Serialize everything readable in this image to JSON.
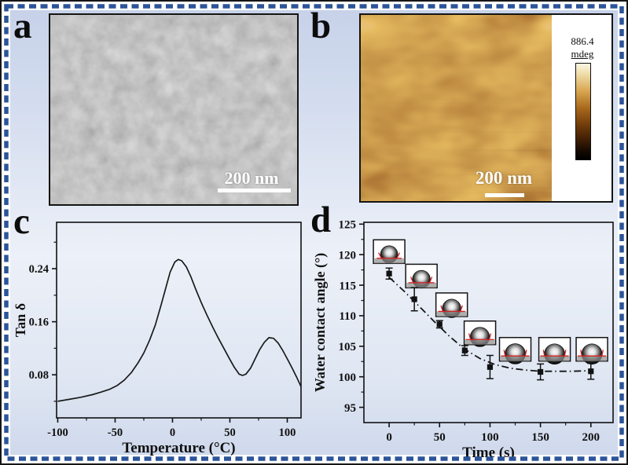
{
  "figure": {
    "colors": {
      "frame_black": "#161616",
      "dash_border_blue": "#2b5499",
      "background_blue_top": "#c7d2e9",
      "background_pale_mid": "#ecf0f8",
      "scale_bar_white": "#ffffff",
      "contact_line_red": "#d42222",
      "curve_black": "#1a1a1a",
      "afm_copper_high": "#f5e7c0",
      "afm_copper_mid": "#9e5f14",
      "afm_copper_low": "#1a0d02"
    }
  },
  "panels": {
    "a": {
      "label": "a",
      "description": "SEM micrograph",
      "scale_bar_label": "200 nm"
    },
    "b": {
      "label": "b",
      "description": "AFM image",
      "scale_bar_label": "200 nm",
      "colorbar": {
        "max_label": "886.4",
        "unit_label": "mdeg"
      }
    },
    "c": {
      "label": "c"
    },
    "d": {
      "label": "d"
    }
  },
  "chart_data": [
    {
      "panel": "c",
      "type": "line",
      "title": "",
      "xlabel": "Temperature (°C)",
      "ylabel": "Tan δ",
      "xlim": [
        -101,
        112
      ],
      "ylim": [
        0.015,
        0.31
      ],
      "xticks": [
        -100,
        -50,
        0,
        50,
        100
      ],
      "xtick_labels": [
        "-100",
        "-50",
        "0",
        "50",
        "100"
      ],
      "minor_xticks": [
        -75,
        -25,
        25,
        75
      ],
      "yticks": [
        0.08,
        0.16,
        0.24
      ],
      "ytick_labels": [
        "0.08",
        "0.16",
        "0.24"
      ],
      "minor_yticks": [
        0.04,
        0.12,
        0.2,
        0.28
      ],
      "grid": false,
      "legend": "none",
      "series": [
        {
          "name": "tan_delta",
          "x": [
            -100,
            -90,
            -80,
            -70,
            -62,
            -55,
            -48,
            -42,
            -36,
            -30,
            -25,
            -20,
            -15,
            -10,
            -6,
            -2,
            2,
            5,
            8,
            12,
            16,
            20,
            25,
            30,
            35,
            40,
            45,
            50,
            54,
            58,
            61,
            64,
            68,
            72,
            76,
            80,
            84,
            88,
            92,
            96,
            100,
            104,
            108,
            112
          ],
          "y": [
            0.04,
            0.043,
            0.046,
            0.05,
            0.054,
            0.058,
            0.064,
            0.072,
            0.083,
            0.098,
            0.113,
            0.132,
            0.155,
            0.185,
            0.21,
            0.235,
            0.25,
            0.254,
            0.252,
            0.243,
            0.228,
            0.21,
            0.189,
            0.17,
            0.152,
            0.135,
            0.119,
            0.103,
            0.091,
            0.081,
            0.079,
            0.081,
            0.09,
            0.104,
            0.118,
            0.129,
            0.136,
            0.135,
            0.128,
            0.117,
            0.104,
            0.091,
            0.077,
            0.062
          ]
        }
      ]
    },
    {
      "panel": "d",
      "type": "scatter",
      "title": "",
      "xlabel": "Time (s)",
      "ylabel": "Water contact angle (°)",
      "xlim": [
        -25,
        222
      ],
      "ylim": [
        92.5,
        125.3
      ],
      "xticks": [
        0,
        50,
        100,
        150,
        200
      ],
      "xtick_labels": [
        "0",
        "50",
        "100",
        "150",
        "200"
      ],
      "minor_xticks": [
        25,
        75,
        125,
        175
      ],
      "yticks": [
        95,
        100,
        105,
        110,
        115,
        120,
        125
      ],
      "ytick_labels": [
        "95",
        "100",
        "105",
        "110",
        "115",
        "120",
        "125"
      ],
      "minor_yticks": [
        97.5,
        102.5,
        107.5,
        112.5,
        117.5,
        122.5
      ],
      "grid": false,
      "legend": "none",
      "points": {
        "x": [
          0,
          25,
          50,
          75,
          100,
          150,
          200
        ],
        "y": [
          116.9,
          112.7,
          108.6,
          104.3,
          101.6,
          100.8,
          100.9
        ],
        "yerr": [
          0.9,
          1.9,
          0.6,
          0.8,
          1.9,
          1.3,
          1.3
        ]
      },
      "trend": {
        "style": "dash-dot",
        "x": [
          0,
          15,
          30,
          45,
          60,
          75,
          90,
          105,
          120,
          135,
          150,
          165,
          180,
          200
        ],
        "y": [
          116.3,
          114.0,
          111.5,
          109.0,
          106.6,
          104.5,
          103.0,
          102.0,
          101.4,
          101.1,
          100.9,
          100.9,
          100.9,
          101.0
        ]
      },
      "insets": [
        {
          "x": 0,
          "y": 120.5,
          "angle": 117,
          "scale": 1.0
        },
        {
          "x": 32,
          "y": 116.5,
          "angle": 113,
          "scale": 1.03
        },
        {
          "x": 62,
          "y": 111.8,
          "angle": 109,
          "scale": 1.07
        },
        {
          "x": 90,
          "y": 107.2,
          "angle": 105,
          "scale": 1.12
        },
        {
          "x": 125,
          "y": 104.5,
          "angle": 102,
          "scale": 1.18
        },
        {
          "x": 164,
          "y": 104.5,
          "angle": 101,
          "scale": 1.18
        },
        {
          "x": 201,
          "y": 104.5,
          "angle": 101,
          "scale": 1.18
        }
      ]
    }
  ]
}
